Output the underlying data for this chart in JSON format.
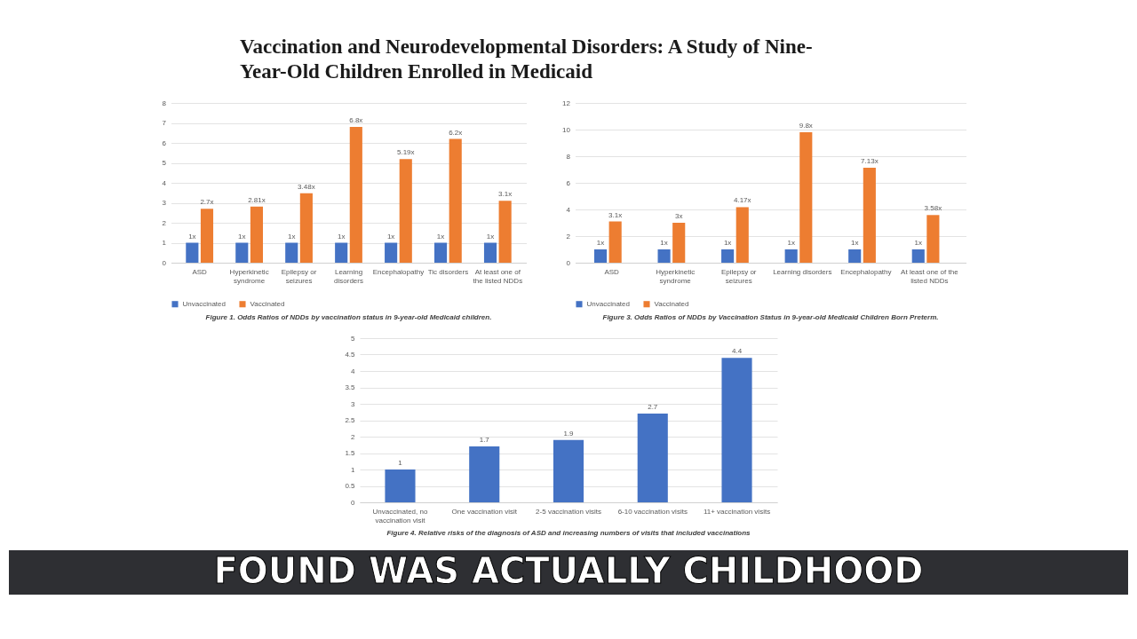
{
  "chart_data": [
    {
      "type": "other",
      "title": "Vaccination and Neurodevelopmental Disorders: A Study of Nine-Year-Old Children Enrolled in Medicaid"
    },
    {
      "type": "bar",
      "categories": [
        "ASD",
        "Hyperkinetic syndrome",
        "Epilepsy or seizures",
        "Learning disorders",
        "Encephalopathy",
        "Tic disorders",
        "At least one of the listed NDDs"
      ],
      "series": [
        {
          "name": "Unvaccinated",
          "color": "#4472c4",
          "values": [
            1,
            1,
            1,
            1,
            1,
            1,
            1
          ],
          "value_labels": [
            "1x",
            "1x",
            "1x",
            "1x",
            "1x",
            "1x",
            "1x"
          ]
        },
        {
          "name": "Vaccinated",
          "color": "#ed7d31",
          "values": [
            2.7,
            2.81,
            3.48,
            6.8,
            5.19,
            6.2,
            3.1
          ],
          "value_labels": [
            "2.7x",
            "2.81x",
            "3.48x",
            "6.8x",
            "5.19x",
            "6.2x",
            "3.1x"
          ]
        }
      ],
      "ylim": [
        0,
        8
      ],
      "yticks": [
        0,
        1,
        2,
        3,
        4,
        5,
        6,
        7,
        8
      ],
      "grid": true,
      "legend": "bottom",
      "annotations": [
        "Figure 1. Odds Ratios of NDDs by vaccination status in 9-year-old Medicaid children."
      ]
    },
    {
      "type": "bar",
      "categories": [
        "ASD",
        "Hyperkinetic syndrome",
        "Epilepsy or seizures",
        "Learning disorders",
        "Encephalopathy",
        "At least one of the listed NDDs"
      ],
      "series": [
        {
          "name": "Unvaccinated",
          "color": "#4472c4",
          "values": [
            1,
            1,
            1,
            1,
            1,
            1
          ],
          "value_labels": [
            "1x",
            "1x",
            "1x",
            "1x",
            "1x",
            "1x"
          ]
        },
        {
          "name": "Vaccinated",
          "color": "#ed7d31",
          "values": [
            3.1,
            3,
            4.17,
            9.8,
            7.13,
            3.58
          ],
          "value_labels": [
            "3.1x",
            "3x",
            "4.17x",
            "9.8x",
            "7.13x",
            "3.58x"
          ]
        }
      ],
      "ylim": [
        0,
        12
      ],
      "yticks": [
        0,
        2,
        4,
        6,
        8,
        10,
        12
      ],
      "grid": true,
      "legend": "bottom",
      "annotations": [
        "Figure 3. Odds Ratios of NDDs by Vaccination Status in 9-year-old Medicaid Children Born Preterm."
      ]
    },
    {
      "type": "bar",
      "categories": [
        "Unvaccinated, no vaccination visit",
        "One vaccination visit",
        "2-5 vaccination visits",
        "6-10 vaccination visits",
        "11+ vaccination visits"
      ],
      "values": [
        1,
        1.7,
        1.9,
        2.7,
        4.4
      ],
      "color": "#4472c4",
      "data_labels": true,
      "ylim": [
        0,
        5
      ],
      "yticks": [
        0,
        0.5,
        1,
        1.5,
        2,
        2.5,
        3,
        3.5,
        4,
        4.5,
        5
      ],
      "grid": true,
      "annotations": [
        "Figure 4. Relative risks of the diagnosis of ASD and increasing numbers of visits that included vaccinations"
      ]
    },
    {
      "type": "other",
      "annotations": [
        "FOUND WAS ACTUALLY CHILDHOOD"
      ]
    }
  ]
}
